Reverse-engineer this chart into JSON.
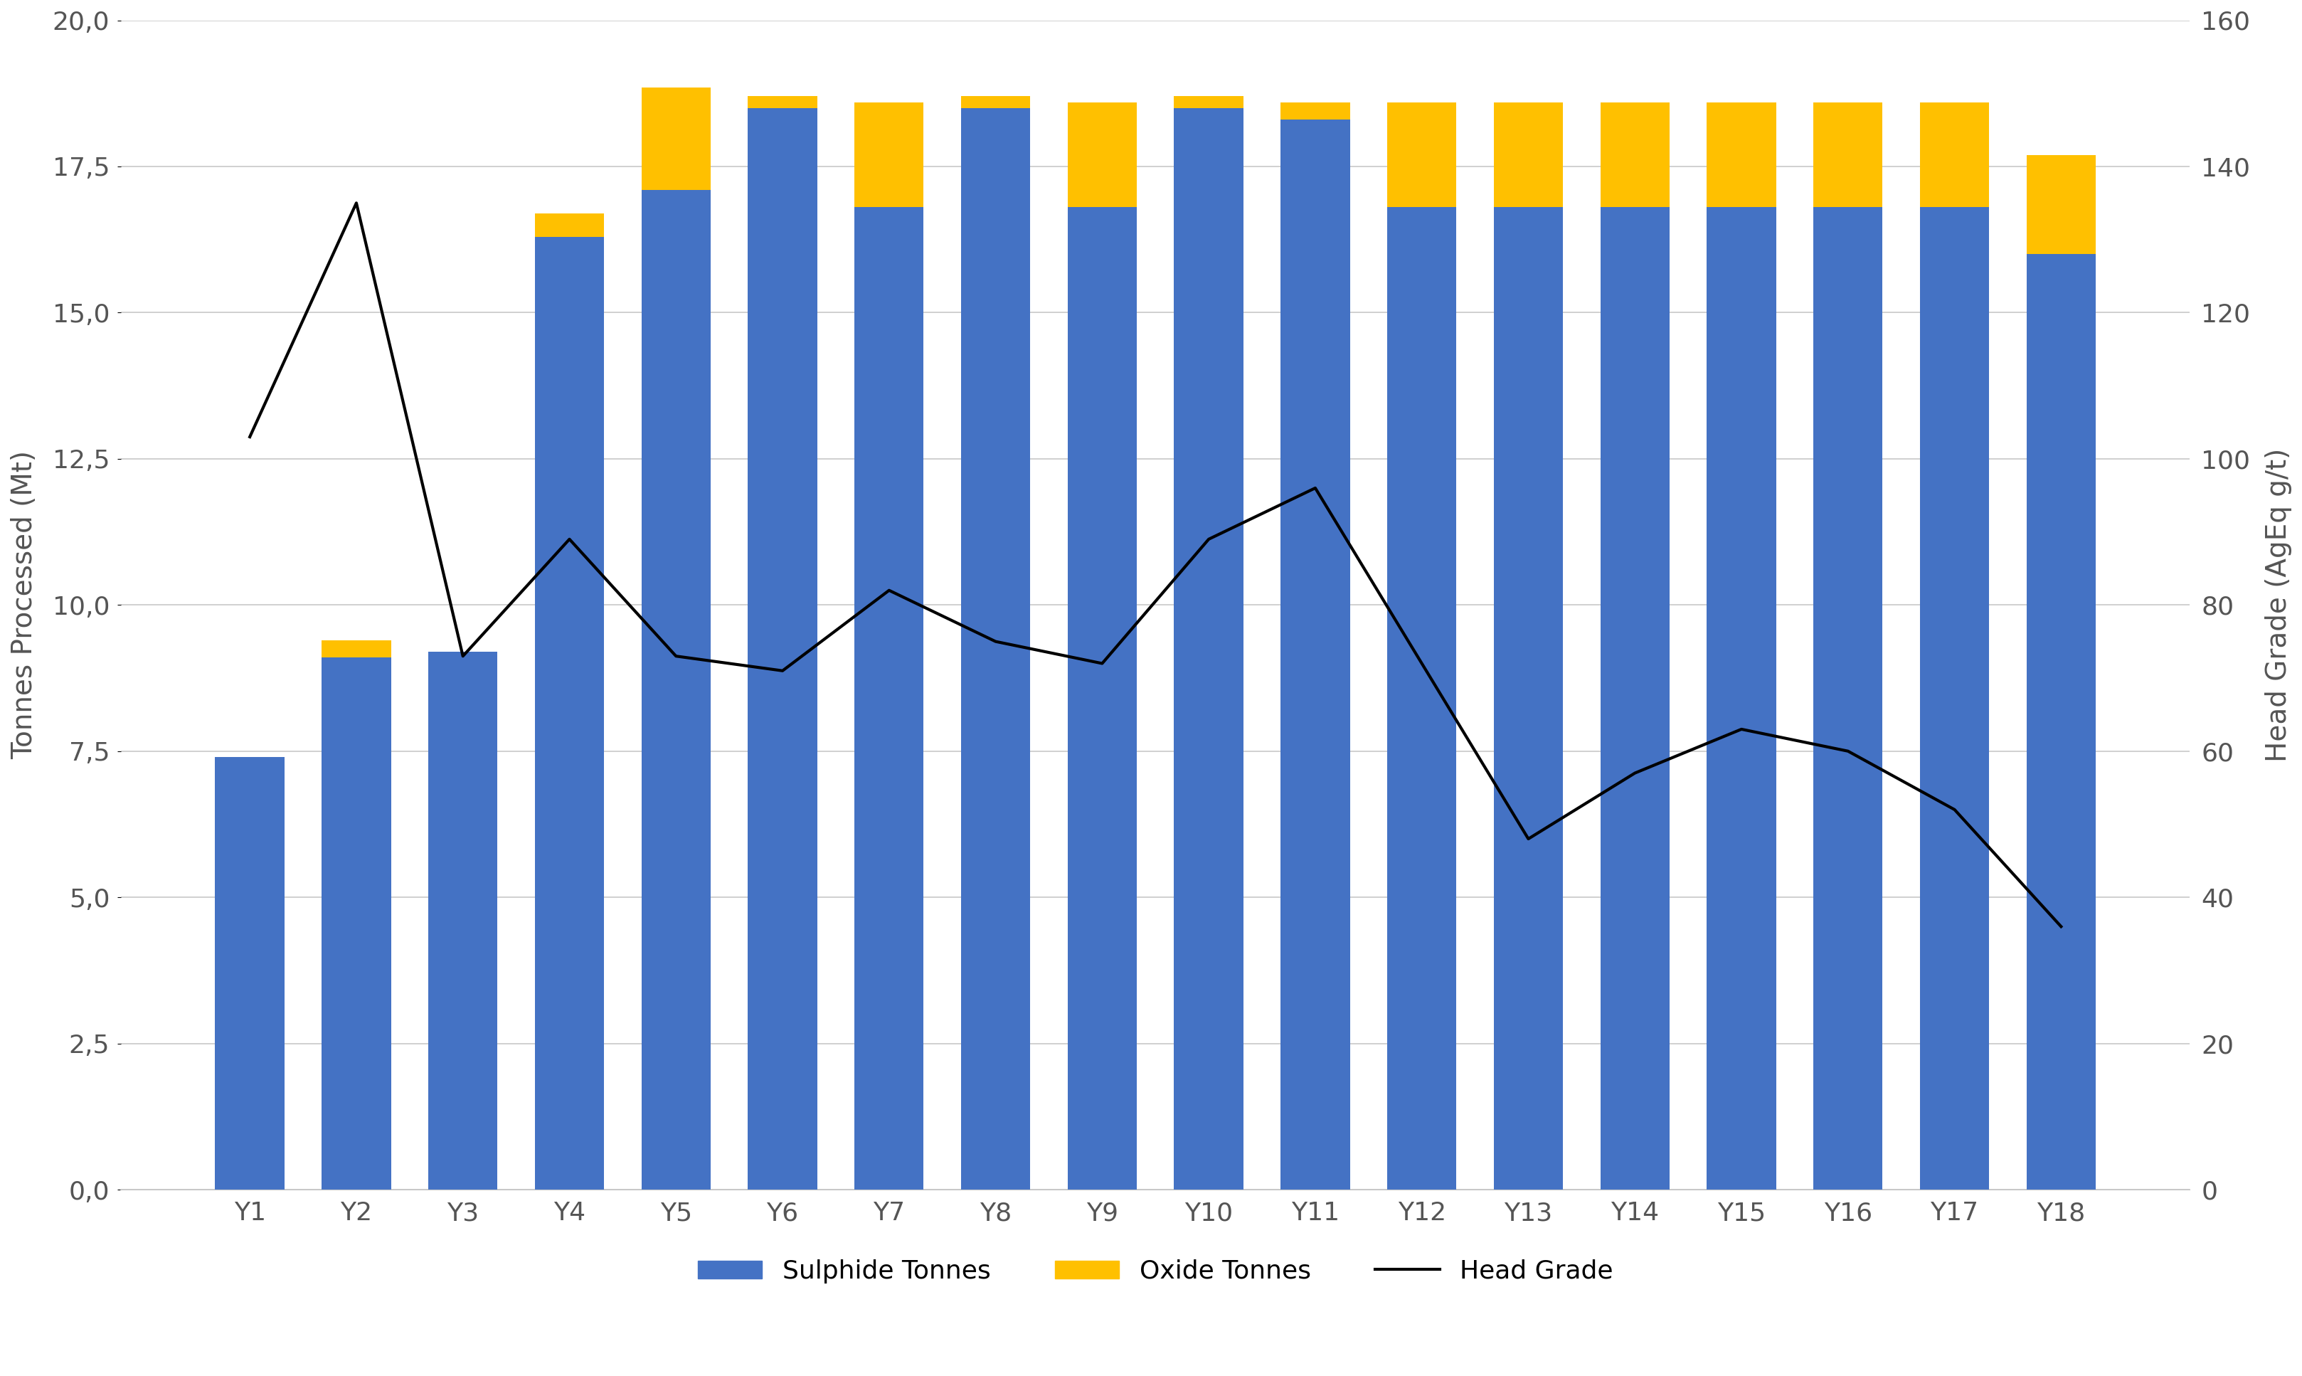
{
  "categories": [
    "Y1",
    "Y2",
    "Y3",
    "Y4",
    "Y5",
    "Y6",
    "Y7",
    "Y8",
    "Y9",
    "Y10",
    "Y11",
    "Y12",
    "Y13",
    "Y14",
    "Y15",
    "Y16",
    "Y17",
    "Y18"
  ],
  "sulphide_tonnes": [
    7.4,
    9.1,
    9.2,
    16.3,
    17.1,
    18.5,
    16.8,
    18.5,
    16.8,
    18.5,
    18.3,
    16.8,
    16.8,
    16.8,
    16.8,
    16.8,
    16.8,
    16.0
  ],
  "oxide_tonnes": [
    0.0,
    0.3,
    0.0,
    0.4,
    1.75,
    0.2,
    1.8,
    0.2,
    1.8,
    0.2,
    0.3,
    1.8,
    1.8,
    1.8,
    1.8,
    1.8,
    1.8,
    1.7
  ],
  "head_grade": [
    103,
    135,
    73,
    89,
    73,
    71,
    82,
    75,
    72,
    89,
    96,
    72,
    48,
    57,
    63,
    60,
    52,
    36
  ],
  "sulphide_color": "#4472C4",
  "oxide_color": "#FFC000",
  "line_color": "#000000",
  "background_color": "#FFFFFF",
  "ylabel_left": "Tonnes Processed (Mt)",
  "ylabel_right": "Head Grade (AgEq g/t)",
  "ylim_left": [
    0,
    20
  ],
  "ylim_right": [
    0,
    160
  ],
  "yticks_left": [
    0.0,
    2.5,
    5.0,
    7.5,
    10.0,
    12.5,
    15.0,
    17.5,
    20.0
  ],
  "ytick_labels_left": [
    "0,0",
    "2,5",
    "5,0",
    "7,5",
    "10,0",
    "12,5",
    "15,0",
    "17,5",
    "20,0"
  ],
  "yticks_right": [
    0,
    20,
    40,
    60,
    80,
    100,
    120,
    140,
    160
  ],
  "ytick_labels_right": [
    "0",
    "20",
    "40",
    "60",
    "80",
    "100",
    "120",
    "140",
    "160"
  ],
  "grid_color": "#C8C8C8",
  "legend_labels": [
    "Sulphide Tonnes",
    "Oxide Tonnes",
    "Head Grade"
  ],
  "axis_label_fontsize": 28,
  "tick_fontsize": 26,
  "legend_fontsize": 26,
  "bar_width": 0.65,
  "line_width": 3.0
}
